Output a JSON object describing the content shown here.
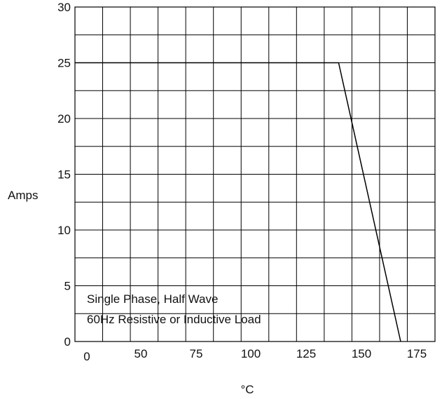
{
  "chart_data": {
    "type": "line",
    "title": "",
    "xlabel": "°C",
    "ylabel": "Amps",
    "x_ticks": [
      "0",
      "50",
      "75",
      "100",
      "125",
      "150",
      "175"
    ],
    "y_ticks": [
      "0",
      "5",
      "10",
      "15",
      "20",
      "25",
      "30"
    ],
    "ylim": [
      0,
      30
    ],
    "grid": true,
    "annotation_lines": [
      "Single Phase, Half Wave",
      "60Hz Resistive or Inductive Load"
    ],
    "series": [
      {
        "x": [
          25,
          144,
          172
        ],
        "y": [
          25,
          25,
          0
        ]
      }
    ],
    "colors": {
      "line": "#000000",
      "grid": "#000000",
      "background": "#ffffff"
    }
  }
}
